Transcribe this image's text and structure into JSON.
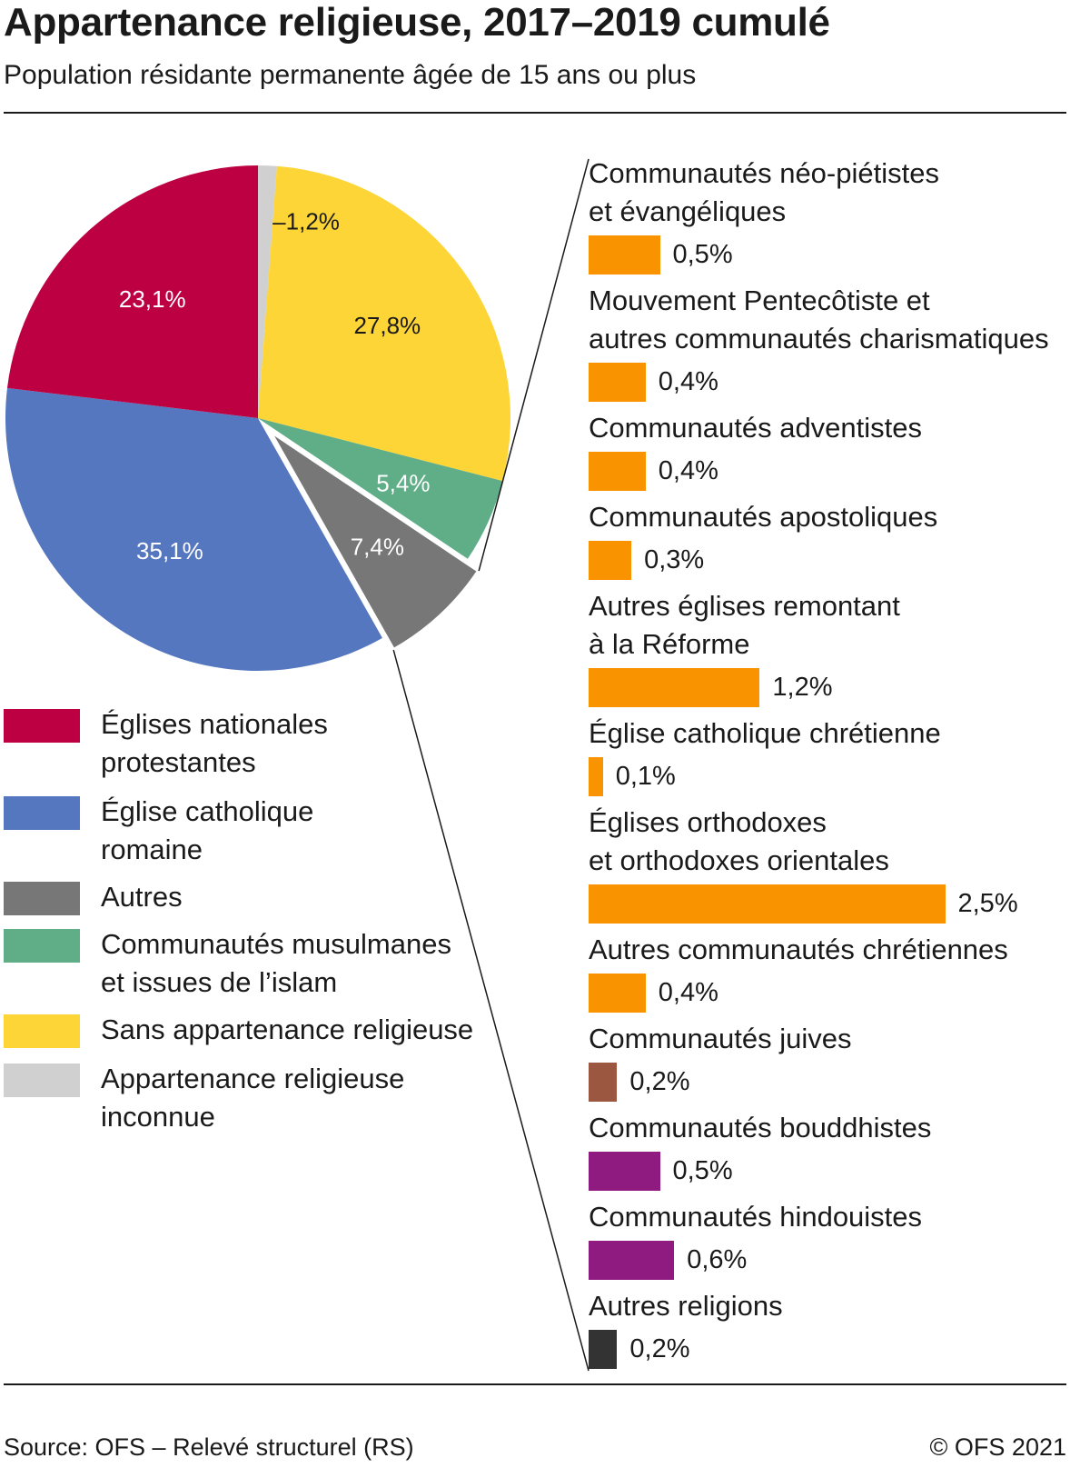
{
  "title": "Appartenance religieuse, 2017–2019 cumulé",
  "subtitle": "Population résidante permanente âgée de 15 ans ou plus",
  "source": "Source: OFS – Relevé structurel (RS)",
  "copyright": "© OFS 2021",
  "chart_data": [
    {
      "type": "pie",
      "slices": [
        {
          "name": "Appartenance religieuse inconnue",
          "value": 1.2,
          "label": "1,2%",
          "color": "#d0d0d0"
        },
        {
          "name": "Sans appartenance religieuse",
          "value": 27.8,
          "label": "27,8%",
          "color": "#fdd537"
        },
        {
          "name": "Communautés musulmanes et issues de l’islam",
          "value": 5.4,
          "label": "5,4%",
          "color": "#5fae87"
        },
        {
          "name": "Autres",
          "value": 7.4,
          "label": "7,4%",
          "color": "#777777",
          "exploded": true
        },
        {
          "name": "Église catholique romaine",
          "value": 35.1,
          "label": "35,1%",
          "color": "#5577c0"
        },
        {
          "name": "Églises nationales protestantes",
          "value": 23.1,
          "label": "23,1%",
          "color": "#bd0042"
        }
      ],
      "legend": [
        {
          "text": "Églises nationales\nprotestantes",
          "color": "#bd0042"
        },
        {
          "text": "Église catholique\nromaine",
          "color": "#5577c0"
        },
        {
          "text": "Autres",
          "color": "#777777"
        },
        {
          "text": "Communautés musulmanes\net issues de l’islam",
          "color": "#5fae87"
        },
        {
          "text": "Sans appartenance religieuse",
          "color": "#fdd537"
        },
        {
          "text": "Appartenance religieuse\ninconnue",
          "color": "#d0d0d0"
        }
      ]
    },
    {
      "type": "bar",
      "categories": [
        "Communautés néo-piétistes\net évangéliques",
        "Mouvement Pentecôtiste et\nautres communautés charismatiques",
        "Communautés adventistes",
        "Communautés apostoliques",
        "Autres églises remontant\nà la Réforme",
        "Église catholique chrétienne",
        "Églises orthodoxes\net orthodoxes orientales",
        "Autres communautés chrétiennes",
        "Communautés juives",
        "Communautés bouddhistes",
        "Communautés hindouistes",
        "Autres religions"
      ],
      "values": [
        0.5,
        0.4,
        0.4,
        0.3,
        1.2,
        0.1,
        2.5,
        0.4,
        0.2,
        0.5,
        0.6,
        0.2
      ],
      "value_labels": [
        "0,5%",
        "0,4%",
        "0,4%",
        "0,3%",
        "1,2%",
        "0,1%",
        "2,5%",
        "0,4%",
        "0,2%",
        "0,5%",
        "0,6%",
        "0,2%"
      ],
      "colors": [
        "#f99400",
        "#f99400",
        "#f99400",
        "#f99400",
        "#f99400",
        "#f99400",
        "#f99400",
        "#f99400",
        "#9c5741",
        "#8f1a80",
        "#8f1a80",
        "#333333"
      ]
    }
  ]
}
